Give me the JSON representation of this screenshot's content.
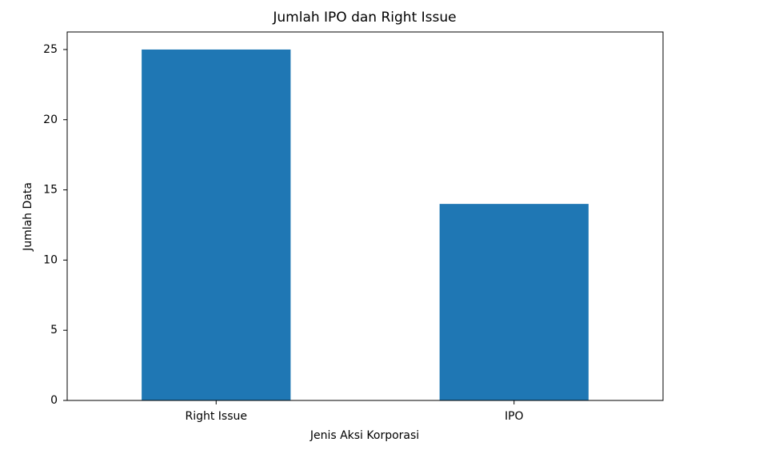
{
  "chart_data": {
    "type": "bar",
    "title": "Jumlah IPO dan Right Issue",
    "x_label": "Jenis Aksi Korporasi",
    "y_label": "Jumlah Data",
    "categories": [
      "Right Issue",
      "IPO"
    ],
    "values": [
      25,
      14
    ],
    "color": "#1f77b4",
    "ylim": [
      0,
      26.25
    ],
    "yticks": [
      0,
      5,
      10,
      15,
      20,
      25
    ],
    "grid": false
  }
}
